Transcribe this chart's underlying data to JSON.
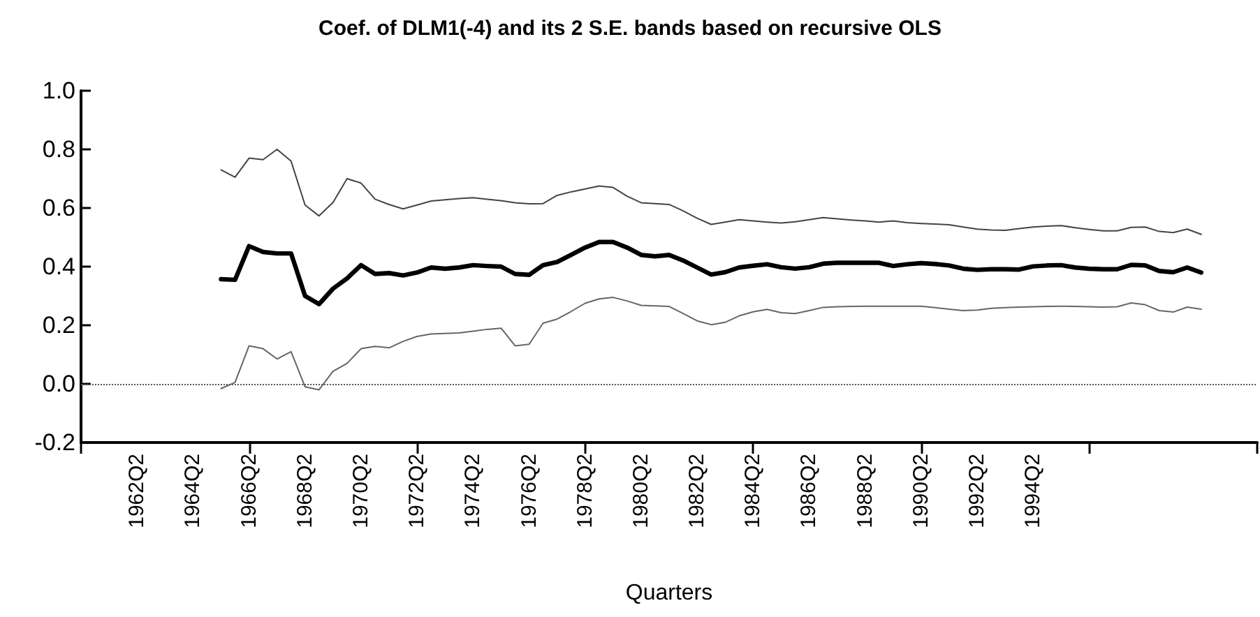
{
  "chart_data": {
    "type": "line",
    "title": "Coef. of DLM1(-4) and its 2 S.E. bands based on recursive OLS",
    "xlabel": "Quarters",
    "categories": [
      null,
      null,
      null,
      null,
      "1962Q2",
      null,
      null,
      null,
      "1964Q2",
      null,
      null,
      null,
      "1966Q2",
      null,
      null,
      null,
      "1968Q2",
      null,
      null,
      null,
      "1970Q2",
      null,
      null,
      null,
      "1972Q2",
      null,
      null,
      null,
      "1974Q2",
      null,
      null,
      null,
      "1976Q2",
      null,
      null,
      null,
      "1978Q2",
      null,
      null,
      null,
      "1980Q2",
      null,
      null,
      null,
      "1982Q2",
      null,
      null,
      null,
      "1984Q2",
      null,
      null,
      null,
      "1986Q2",
      null,
      null,
      null,
      "1988Q2",
      null,
      null,
      null,
      "1990Q2",
      null,
      null,
      null,
      "1992Q2",
      null,
      null,
      null,
      "1994Q2",
      null,
      null,
      null,
      null,
      null,
      null,
      null,
      null,
      null,
      null,
      null,
      null,
      null,
      null,
      null,
      null
    ],
    "ylim": [
      -0.2,
      1.0
    ],
    "yticks": [
      {
        "value": -0.2,
        "label": "-0.2"
      },
      {
        "value": 0,
        "label": "0.0"
      },
      {
        "value": 0.2,
        "label": "0.2"
      },
      {
        "value": 0.4,
        "label": "0.4"
      },
      {
        "value": 0.6,
        "label": "0.6"
      },
      {
        "value": 0.8,
        "label": "0.8"
      },
      {
        "value": 1.0,
        "label": "1.0"
      }
    ],
    "grid": false,
    "marker": "none",
    "line_style": "solid",
    "ref_lines": [
      {
        "axis": "y",
        "value": 0,
        "label": null,
        "color": "#555555",
        "line_style": "dotted"
      }
    ],
    "series": [
      {
        "color": "#000000",
        "values": [
          null,
          null,
          null,
          null,
          null,
          null,
          null,
          null,
          null,
          null,
          0.357,
          0.355,
          0.47,
          0.45,
          0.445,
          0.445,
          0.3,
          0.272,
          0.325,
          0.36,
          0.405,
          0.375,
          0.378,
          0.37,
          0.38,
          0.397,
          0.393,
          0.397,
          0.405,
          0.402,
          0.4,
          0.375,
          0.372,
          0.405,
          0.416,
          0.44,
          0.465,
          0.484,
          0.484,
          0.465,
          0.44,
          0.435,
          0.44,
          0.421,
          0.397,
          0.373,
          0.381,
          0.397,
          0.403,
          0.408,
          0.398,
          0.393,
          0.398,
          0.41,
          0.413,
          0.413,
          0.413,
          0.413,
          0.402,
          0.408,
          0.412,
          0.409,
          0.404,
          0.393,
          0.389,
          0.391,
          0.391,
          0.39,
          0.401,
          0.404,
          0.405,
          0.397,
          0.393,
          0.391,
          0.391,
          0.406,
          0.404,
          0.385,
          0.381,
          0.397,
          0.38,
          null,
          null,
          null,
          null
        ]
      },
      {
        "color": "#444444",
        "values": [
          null,
          null,
          null,
          null,
          null,
          null,
          null,
          null,
          null,
          null,
          0.73,
          0.705,
          0.77,
          0.765,
          0.8,
          0.76,
          0.61,
          0.573,
          0.619,
          0.7,
          0.685,
          0.63,
          0.612,
          0.597,
          0.61,
          0.624,
          0.628,
          0.632,
          0.635,
          0.63,
          0.625,
          0.618,
          0.614,
          0.615,
          0.643,
          0.655,
          0.665,
          0.675,
          0.67,
          0.64,
          0.618,
          0.615,
          0.612,
          0.59,
          0.565,
          0.544,
          0.552,
          0.56,
          0.556,
          0.552,
          0.549,
          0.553,
          0.56,
          0.567,
          0.563,
          0.559,
          0.556,
          0.552,
          0.556,
          0.55,
          0.547,
          0.545,
          0.543,
          0.535,
          0.528,
          0.525,
          0.524,
          0.53,
          0.535,
          0.538,
          0.54,
          0.533,
          0.527,
          0.522,
          0.522,
          0.534,
          0.535,
          0.52,
          0.516,
          0.528,
          0.51,
          null,
          null,
          null,
          null
        ]
      },
      {
        "color": "#666666",
        "values": [
          null,
          null,
          null,
          null,
          null,
          null,
          null,
          null,
          null,
          null,
          -0.016,
          0.005,
          0.13,
          0.12,
          0.085,
          0.11,
          -0.01,
          -0.02,
          0.043,
          0.07,
          0.12,
          0.128,
          0.123,
          0.145,
          0.162,
          0.17,
          0.172,
          0.174,
          0.18,
          0.186,
          0.19,
          0.13,
          0.135,
          0.207,
          0.221,
          0.247,
          0.275,
          0.29,
          0.295,
          0.283,
          0.268,
          0.266,
          0.264,
          0.24,
          0.215,
          0.202,
          0.21,
          0.232,
          0.246,
          0.254,
          0.243,
          0.24,
          0.25,
          0.261,
          0.263,
          0.264,
          0.265,
          0.265,
          0.265,
          0.265,
          0.265,
          0.26,
          0.255,
          0.25,
          0.252,
          0.258,
          0.26,
          0.262,
          0.263,
          0.264,
          0.265,
          0.264,
          0.263,
          0.262,
          0.263,
          0.276,
          0.27,
          0.25,
          0.245,
          0.262,
          0.255,
          null,
          null,
          null,
          null
        ]
      }
    ]
  }
}
